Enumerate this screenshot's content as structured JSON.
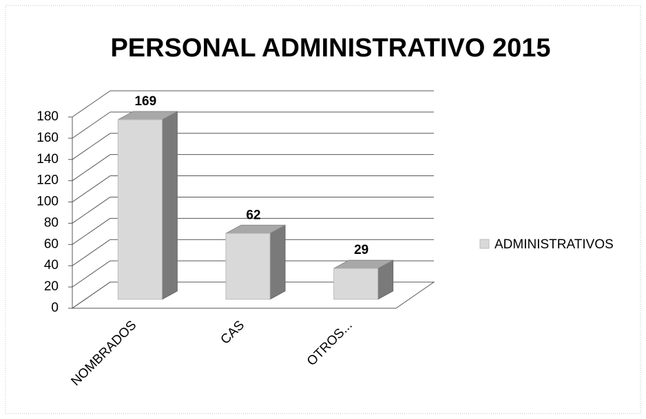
{
  "chart_data": {
    "type": "bar",
    "title": "PERSONAL ADMINISTRATIVO 2015",
    "categories": [
      "NOMBRADOS",
      "CAS",
      "OTROS..."
    ],
    "series": [
      {
        "name": "ADMINISTRATIVOS",
        "color": "#d9d9d9",
        "values": [
          169,
          62,
          29
        ]
      }
    ],
    "ylim": [
      0,
      180
    ],
    "yticks": [
      0,
      20,
      40,
      60,
      80,
      100,
      120,
      140,
      160,
      180
    ],
    "grid": true,
    "legend": "right"
  }
}
